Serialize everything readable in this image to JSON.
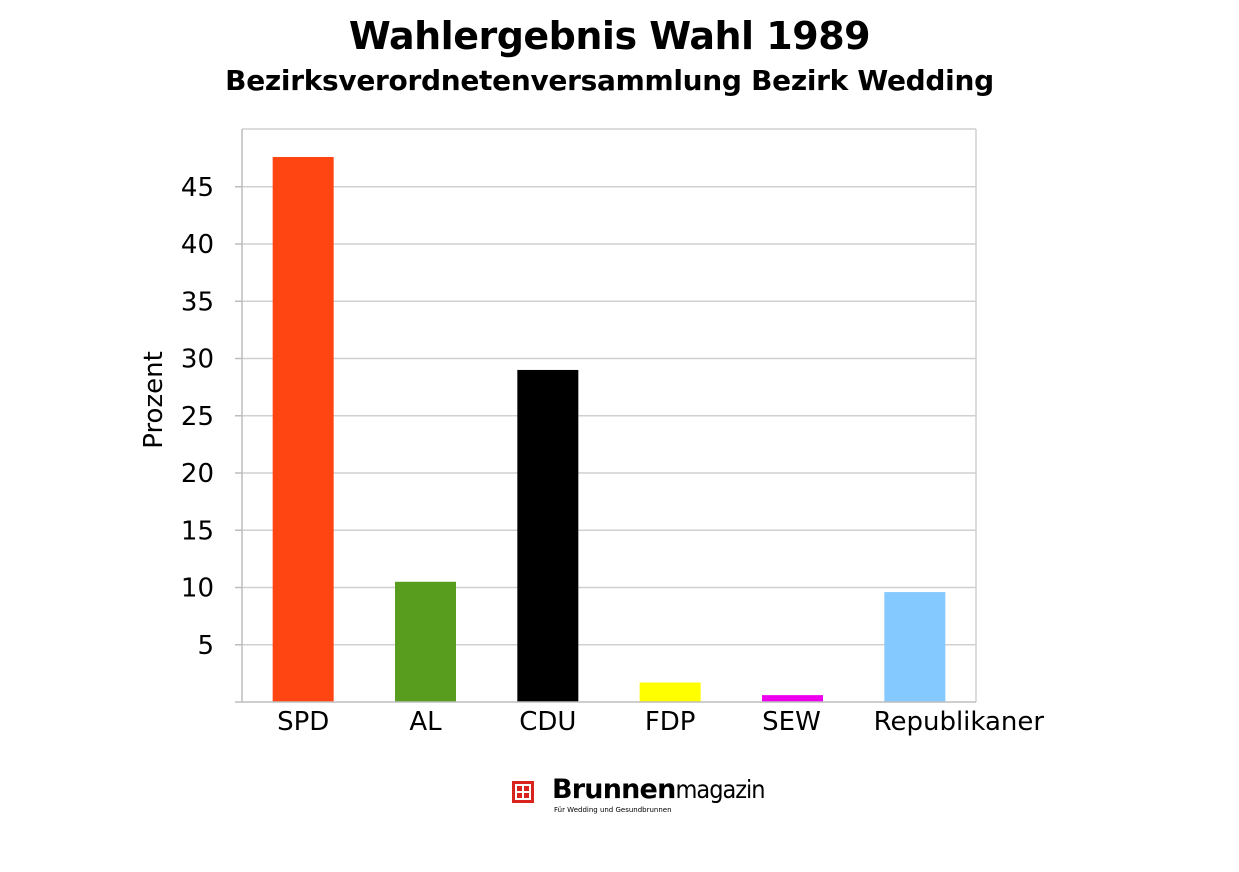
{
  "title": "Wahlergebnis Wahl 1989",
  "subtitle": "Bezirksverordnetenversammlung Bezirk Wedding",
  "chart_data": {
    "type": "bar",
    "title": "Wahlergebnis Wahl 1989",
    "subtitle": "Bezirksverordnetenversammlung Bezirk Wedding",
    "xlabel": "",
    "ylabel": "Prozent",
    "categories": [
      "SPD",
      "AL",
      "CDU",
      "FDP",
      "SEW",
      "Republikaner"
    ],
    "values": [
      47.6,
      10.5,
      29.0,
      1.7,
      0.6,
      9.6
    ],
    "colors": [
      "#ff4511",
      "#589d1e",
      "#000000",
      "#ffff00",
      "#ee00ee",
      "#84c9ff"
    ],
    "ylim": [
      0,
      50
    ],
    "yticks": [
      5,
      10,
      15,
      20,
      25,
      30,
      35,
      40,
      45
    ],
    "grid": true,
    "legend": "none"
  },
  "logo": {
    "brand_bold": "Brunnen",
    "brand_light": "magazin",
    "tagline": "Für Wedding und Gesundbrunnen",
    "color": "#d9231d"
  }
}
